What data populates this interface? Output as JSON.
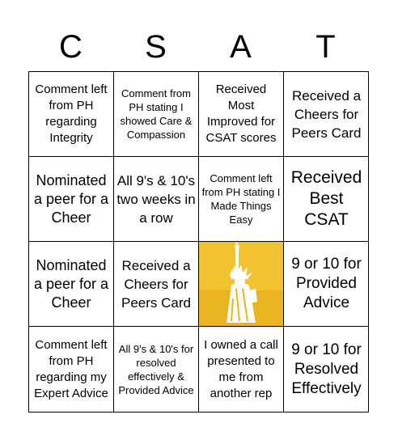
{
  "header": {
    "letters": [
      "C",
      "S",
      "A",
      "T"
    ]
  },
  "board": {
    "cells": [
      "Comment left from PH regarding Integrity",
      "Comment from PH stating I showed Care & Compassion",
      "Received Most Improved for CSAT scores",
      "Received a Cheers for Peers Card",
      "Nominated a peer for a Cheer",
      "All 9's & 10's two weeks in a row",
      "Comment left from PH stating I Made Things Easy",
      "Received Best CSAT",
      "Nominated a peer for a Cheer",
      "Received a Cheers for Peers Card",
      "",
      "9 or 10 for Provided Advice",
      "Comment left from PH regarding my Expert Advice",
      "All 9's & 10's for resolved effectively & Provided Advice",
      "I owned a call presented to me from another rep",
      "9 or 10 for Resolved Effectively"
    ],
    "free_icon": "statue-of-liberty-icon",
    "free_color": "#f2c230"
  }
}
